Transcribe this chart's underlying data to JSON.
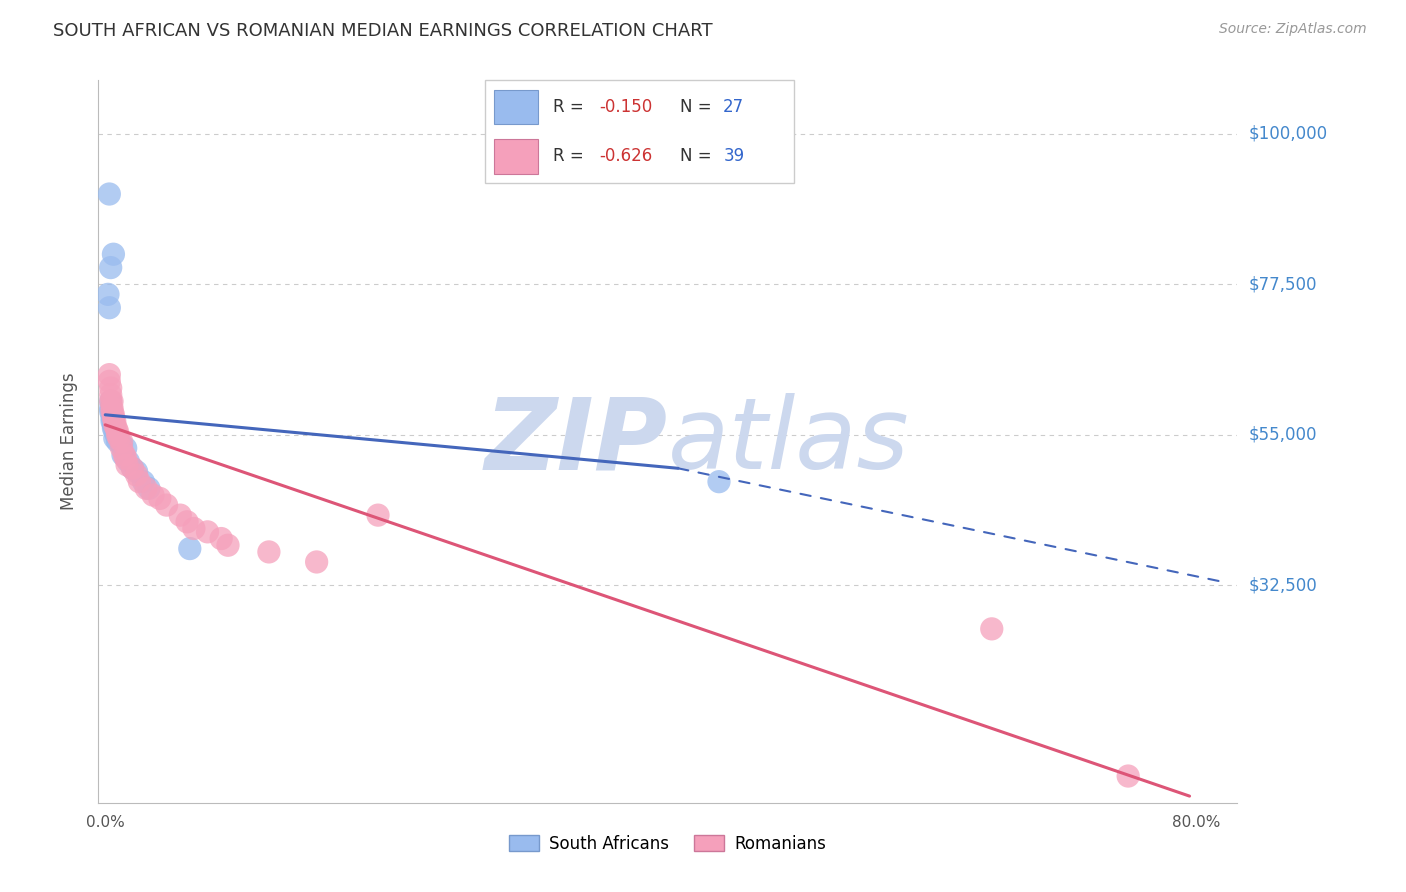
{
  "title": "SOUTH AFRICAN VS ROMANIAN MEDIAN EARNINGS CORRELATION CHART",
  "source": "Source: ZipAtlas.com",
  "ylabel": "Median Earnings",
  "yticks": [
    0,
    32500,
    55000,
    77500,
    100000
  ],
  "ytick_labels": [
    "",
    "$32,500",
    "$55,000",
    "$77,500",
    "$100,000"
  ],
  "ymin": 0,
  "ymax": 108000,
  "xmin": -0.005,
  "xmax": 0.83,
  "blue_color": "#4466bb",
  "pink_color": "#dd5577",
  "blue_scatter_color": "#99bbee",
  "pink_scatter_color": "#f5a0bb",
  "axis_color": "#bbbbbb",
  "grid_color": "#cccccc",
  "title_color": "#333333",
  "right_label_color": "#4488cc",
  "blue_points": [
    [
      0.003,
      91000
    ],
    [
      0.006,
      82000
    ],
    [
      0.004,
      80000
    ],
    [
      0.002,
      76000
    ],
    [
      0.003,
      74000
    ],
    [
      0.004,
      60000
    ],
    [
      0.004,
      59000
    ],
    [
      0.004,
      58500
    ],
    [
      0.005,
      58000
    ],
    [
      0.005,
      57500
    ],
    [
      0.005,
      57000
    ],
    [
      0.006,
      56500
    ],
    [
      0.006,
      56000
    ],
    [
      0.007,
      55500
    ],
    [
      0.008,
      55000
    ],
    [
      0.007,
      54500
    ],
    [
      0.009,
      54000
    ],
    [
      0.012,
      53500
    ],
    [
      0.015,
      53000
    ],
    [
      0.013,
      52000
    ],
    [
      0.017,
      51000
    ],
    [
      0.02,
      50000
    ],
    [
      0.023,
      49500
    ],
    [
      0.028,
      48000
    ],
    [
      0.032,
      47000
    ],
    [
      0.45,
      48000
    ],
    [
      0.062,
      38000
    ]
  ],
  "pink_points": [
    [
      0.003,
      64000
    ],
    [
      0.003,
      63000
    ],
    [
      0.004,
      62000
    ],
    [
      0.004,
      61000
    ],
    [
      0.004,
      60000
    ],
    [
      0.005,
      60000
    ],
    [
      0.005,
      59000
    ],
    [
      0.005,
      58500
    ],
    [
      0.006,
      58000
    ],
    [
      0.006,
      57500
    ],
    [
      0.007,
      57000
    ],
    [
      0.007,
      56500
    ],
    [
      0.008,
      56000
    ],
    [
      0.009,
      55500
    ],
    [
      0.009,
      55000
    ],
    [
      0.01,
      54500
    ],
    [
      0.012,
      54000
    ],
    [
      0.012,
      53000
    ],
    [
      0.014,
      52000
    ],
    [
      0.015,
      51500
    ],
    [
      0.016,
      50500
    ],
    [
      0.02,
      50000
    ],
    [
      0.023,
      49000
    ],
    [
      0.025,
      48000
    ],
    [
      0.03,
      47000
    ],
    [
      0.035,
      46000
    ],
    [
      0.04,
      45500
    ],
    [
      0.045,
      44500
    ],
    [
      0.055,
      43000
    ],
    [
      0.06,
      42000
    ],
    [
      0.065,
      41000
    ],
    [
      0.075,
      40500
    ],
    [
      0.085,
      39500
    ],
    [
      0.09,
      38500
    ],
    [
      0.12,
      37500
    ],
    [
      0.155,
      36000
    ],
    [
      0.2,
      43000
    ],
    [
      0.65,
      26000
    ],
    [
      0.75,
      4000
    ]
  ],
  "blue_line_solid": [
    [
      0.0,
      58000
    ],
    [
      0.42,
      50000
    ]
  ],
  "blue_line_dashed": [
    [
      0.42,
      50000
    ],
    [
      0.82,
      33000
    ]
  ],
  "pink_line": [
    [
      0.0,
      56500
    ],
    [
      0.795,
      1000
    ]
  ],
  "watermark_zip": "ZIP",
  "watermark_atlas": "atlas",
  "watermark_color": "#ccd8ee",
  "watermark_fontsize": 72,
  "legend_blue_r": "-0.150",
  "legend_blue_n": "27",
  "legend_pink_r": "-0.626",
  "legend_pink_n": "39",
  "bottom_legend": [
    "South Africans",
    "Romanians"
  ]
}
